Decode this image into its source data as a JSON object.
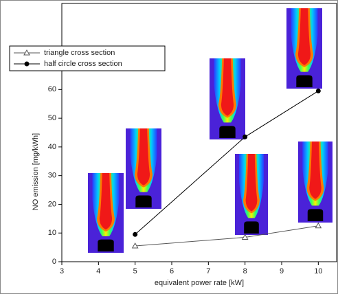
{
  "chart_data": {
    "type": "line",
    "x_label": "equivalent power rate [kW]",
    "y_label": "NO emission [mg/kWh]",
    "xlim": [
      3,
      10.5
    ],
    "xticks": [
      3,
      4,
      5,
      6,
      7,
      8,
      9,
      10
    ],
    "ylim": [
      0,
      90
    ],
    "yticks": [
      0,
      10,
      20,
      30,
      40,
      50,
      60
    ],
    "legend": "upper left",
    "series": [
      {
        "name": "triangle cross section",
        "color": "#555555",
        "marker": "triangle",
        "x": [
          5,
          8,
          10
        ],
        "values": [
          5.5,
          8.5,
          12.5
        ]
      },
      {
        "name": "half circle cross section",
        "color": "#000000",
        "marker": "circle",
        "x": [
          5,
          8,
          10
        ],
        "values": [
          9.5,
          43.5,
          59.5
        ]
      }
    ]
  }
}
